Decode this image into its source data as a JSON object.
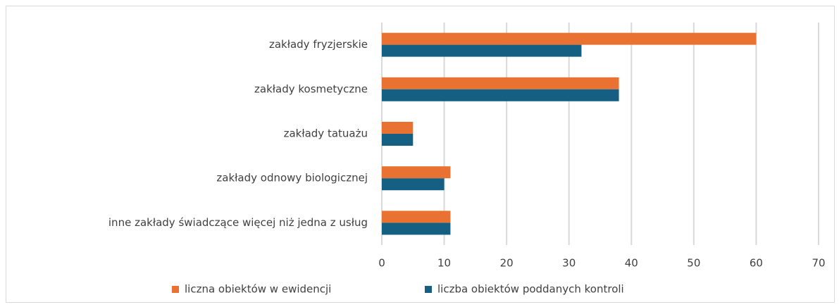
{
  "chart_data": {
    "type": "bar",
    "orientation": "horizontal",
    "categories": [
      "zakłady fryzjerskie",
      "zakłady kosmetyczne",
      "zakłady tatuażu",
      "zakłady odnowy biologicznej",
      "inne zakłady świadczące więcej niż jedna z usług"
    ],
    "series": [
      {
        "name": "liczna obiektów w ewidencji",
        "color": "#e97132",
        "values": [
          60,
          38,
          5,
          11,
          11
        ]
      },
      {
        "name": "liczba obiektów poddanych kontroli",
        "color": "#156082",
        "values": [
          32,
          38,
          5,
          10,
          11
        ]
      }
    ],
    "xlim": [
      0,
      70
    ],
    "xticks": [
      0,
      10,
      20,
      30,
      40,
      50,
      60,
      70
    ],
    "grid": true,
    "legend": "bottom"
  }
}
